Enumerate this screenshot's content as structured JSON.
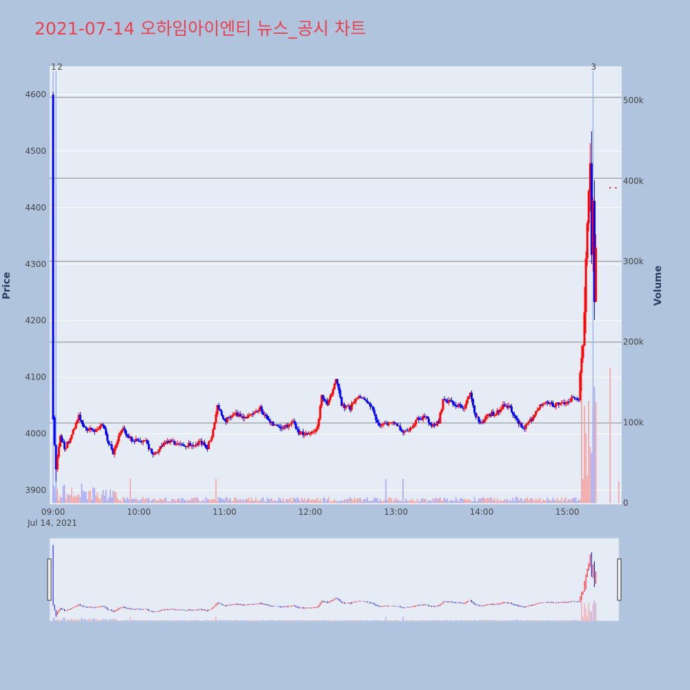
{
  "title": "2021-07-14 오하임아이엔티 뉴스_공시 차트",
  "colors": {
    "up": "#ff0000",
    "down": "#0000ff",
    "title": "#e8414f",
    "background": "#b0c4de",
    "plot_bg": "#e5ecf6"
  },
  "chart_data": {
    "type": "candlestick",
    "title": "2021-07-14 오하임아이엔티 뉴스_공시 차트",
    "ylabel": "Price",
    "y2label": "Volume",
    "date_label": "Jul 14, 2021",
    "ylim": [
      3875,
      4650
    ],
    "y2lim": [
      0,
      537000
    ],
    "y_ticks": [
      3900,
      4000,
      4100,
      4200,
      4300,
      4400,
      4500,
      4600
    ],
    "y2_ticks": [
      {
        "v": 0,
        "label": "0"
      },
      {
        "v": 100000,
        "label": "100k"
      },
      {
        "v": 200000,
        "label": "200k"
      },
      {
        "v": 300000,
        "label": "300k"
      },
      {
        "v": 400000,
        "label": "400k"
      },
      {
        "v": 500000,
        "label": "500k"
      }
    ],
    "x_ticks": [
      "09:00",
      "10:00",
      "11:00",
      "12:00",
      "13:00",
      "14:00",
      "15:00"
    ],
    "news_markers": [
      {
        "time": "09:00",
        "label": "1"
      },
      {
        "time": "09:02",
        "label": "2"
      },
      {
        "time": "15:18",
        "label": "3"
      }
    ],
    "price_levels": [
      4595,
      4452,
      4305,
      4162,
      4019
    ],
    "anchors": [
      [
        "09:00",
        4025
      ],
      [
        "09:02",
        3940
      ],
      [
        "09:05",
        3995
      ],
      [
        "09:08",
        3975
      ],
      [
        "09:12",
        3990
      ],
      [
        "09:18",
        4030
      ],
      [
        "09:22",
        4010
      ],
      [
        "09:30",
        4005
      ],
      [
        "09:35",
        4015
      ],
      [
        "09:38",
        3990
      ],
      [
        "09:42",
        3965
      ],
      [
        "09:48",
        4010
      ],
      [
        "09:55",
        3990
      ],
      [
        "10:05",
        3985
      ],
      [
        "10:10",
        3960
      ],
      [
        "10:15",
        3975
      ],
      [
        "10:20",
        3985
      ],
      [
        "10:35",
        3980
      ],
      [
        "10:45",
        3985
      ],
      [
        "10:48",
        3975
      ],
      [
        "10:52",
        4005
      ],
      [
        "10:55",
        4050
      ],
      [
        "11:00",
        4020
      ],
      [
        "11:05",
        4035
      ],
      [
        "11:15",
        4030
      ],
      [
        "11:20",
        4035
      ],
      [
        "11:25",
        4045
      ],
      [
        "11:30",
        4025
      ],
      [
        "11:35",
        4015
      ],
      [
        "11:40",
        4010
      ],
      [
        "11:48",
        4020
      ],
      [
        "11:52",
        4000
      ],
      [
        "11:58",
        4000
      ],
      [
        "12:05",
        4010
      ],
      [
        "12:08",
        4070
      ],
      [
        "12:12",
        4050
      ],
      [
        "12:16",
        4080
      ],
      [
        "12:18",
        4100
      ],
      [
        "12:22",
        4050
      ],
      [
        "12:28",
        4045
      ],
      [
        "12:33",
        4065
      ],
      [
        "12:38",
        4060
      ],
      [
        "12:43",
        4045
      ],
      [
        "12:48",
        4015
      ],
      [
        "12:55",
        4020
      ],
      [
        "13:00",
        4015
      ],
      [
        "13:05",
        4005
      ],
      [
        "13:10",
        4010
      ],
      [
        "13:15",
        4025
      ],
      [
        "13:20",
        4030
      ],
      [
        "13:25",
        4015
      ],
      [
        "13:30",
        4020
      ],
      [
        "13:33",
        4060
      ],
      [
        "13:38",
        4055
      ],
      [
        "13:43",
        4050
      ],
      [
        "13:48",
        4045
      ],
      [
        "13:52",
        4070
      ],
      [
        "13:56",
        4030
      ],
      [
        "14:00",
        4020
      ],
      [
        "14:05",
        4035
      ],
      [
        "14:10",
        4035
      ],
      [
        "14:15",
        4050
      ],
      [
        "14:20",
        4045
      ],
      [
        "14:25",
        4020
      ],
      [
        "14:30",
        4010
      ],
      [
        "14:35",
        4025
      ],
      [
        "14:40",
        4045
      ],
      [
        "14:45",
        4060
      ],
      [
        "14:50",
        4050
      ],
      [
        "14:55",
        4055
      ],
      [
        "15:00",
        4055
      ],
      [
        "15:05",
        4065
      ],
      [
        "15:08",
        4060
      ],
      [
        "15:10",
        4150
      ],
      [
        "15:12",
        4200
      ],
      [
        "15:14",
        4380
      ],
      [
        "15:15",
        4420
      ],
      [
        "15:16",
        4460
      ],
      [
        "15:17",
        4300
      ],
      [
        "15:18",
        4420
      ],
      [
        "15:19",
        4240
      ],
      [
        "15:20",
        4310
      ]
    ],
    "after_hours": [
      {
        "time": "15:30",
        "price": 4435
      },
      {
        "time": "15:34",
        "price": 4435
      }
    ]
  }
}
